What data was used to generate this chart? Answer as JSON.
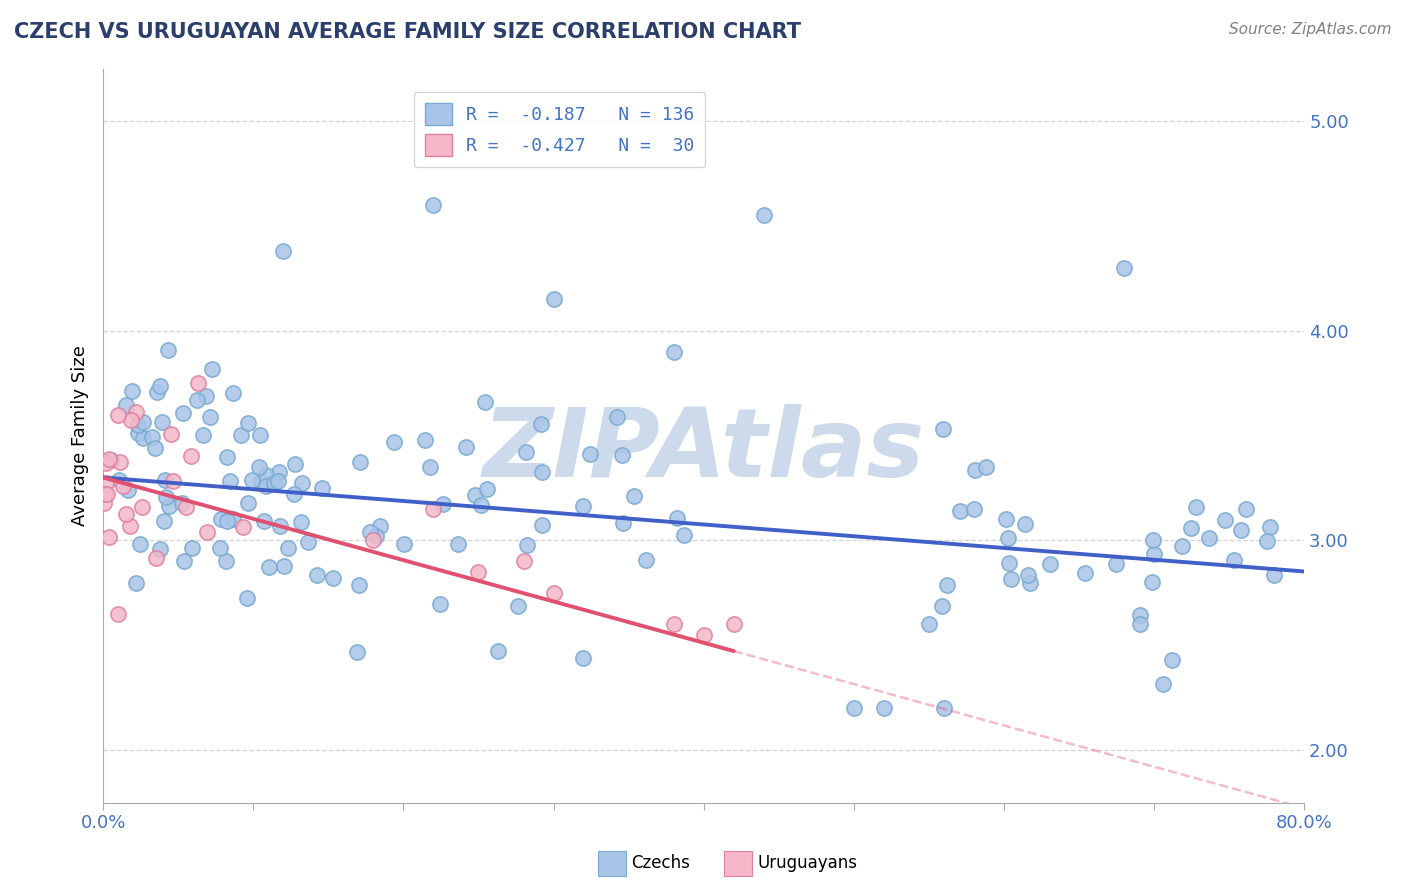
{
  "title": "CZECH VS URUGUAYAN AVERAGE FAMILY SIZE CORRELATION CHART",
  "source": "Source: ZipAtlas.com",
  "ylabel": "Average Family Size",
  "xlabel": "",
  "xlim": [
    0.0,
    0.8
  ],
  "ylim": [
    1.75,
    5.25
  ],
  "yticks": [
    2.0,
    3.0,
    4.0,
    5.0
  ],
  "xticks": [
    0.0,
    0.1,
    0.2,
    0.3,
    0.4,
    0.5,
    0.6,
    0.7,
    0.8
  ],
  "czech_color": "#a8c4e8",
  "czech_edge_color": "#7aaad0",
  "uruguayan_color": "#f4b8c8",
  "uruguayan_edge_color": "#e080a0",
  "trend_czech_color": "#4060c8",
  "trend_uruguayan_color": "#e05070",
  "legend_R_czech": "-0.187",
  "legend_N_czech": "136",
  "legend_R_uruguayan": "-0.427",
  "legend_N_uruguayan": "30",
  "background_color": "#ffffff",
  "grid_color": "#c8c8c8",
  "title_color": "#2c3e6b",
  "watermark_text": "ZIPAtlas",
  "watermark_color": "#ccdaec",
  "axis_color": "#aaaaaa",
  "tick_color": "#4472c4",
  "source_color": "#808080"
}
